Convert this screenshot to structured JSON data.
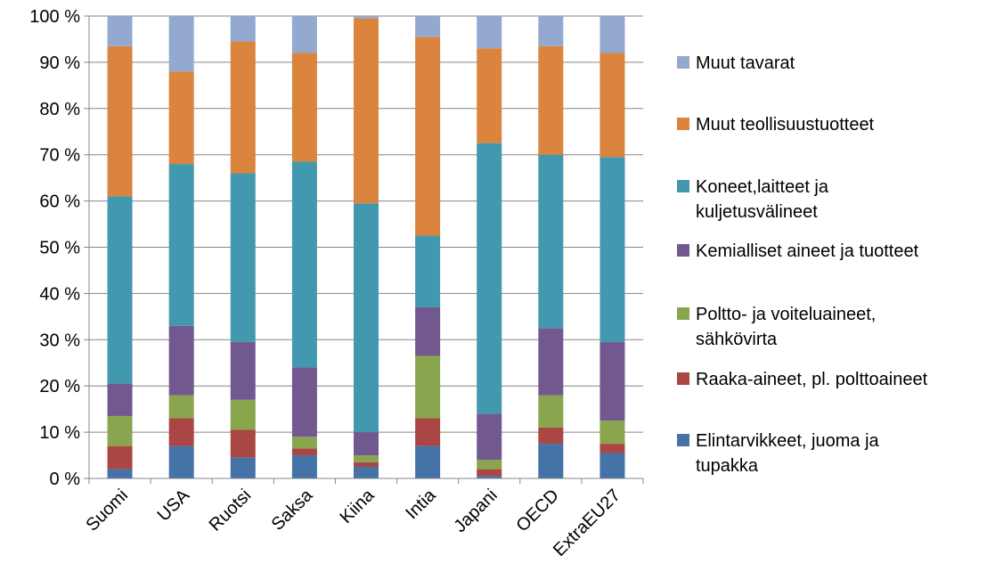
{
  "chart_data": {
    "type": "bar",
    "stacked": true,
    "percent_stacked": true,
    "categories": [
      "Suomi",
      "USA",
      "Ruotsi",
      "Saksa",
      "Kiina",
      "Intia",
      "Japani",
      "OECD",
      "ExtraEU27"
    ],
    "y_ticks": [
      "0 %",
      "10 %",
      "20 %",
      "30 %",
      "40 %",
      "50 %",
      "60 %",
      "70 %",
      "80 %",
      "90 %",
      "100 %"
    ],
    "ylim": [
      0,
      100
    ],
    "grid": true,
    "legend_position": "right",
    "series": [
      {
        "name": "Elintarvikkeet, juoma ja tupakka",
        "color": "#4572A7",
        "values": [
          2,
          7,
          4.5,
          5,
          2.5,
          7,
          0.5,
          7.5,
          5.5
        ]
      },
      {
        "name": "Raaka-aineet, pl. polttoaineet",
        "color": "#AA4643",
        "values": [
          5,
          6,
          6,
          1.5,
          1,
          6,
          1.5,
          3.5,
          2
        ]
      },
      {
        "name": "Poltto- ja voiteluaineet, sähkövirta",
        "color": "#89A54E",
        "values": [
          6.5,
          5,
          6.5,
          2.5,
          1.5,
          13.5,
          2,
          7,
          5
        ]
      },
      {
        "name": "Kemialliset aineet ja tuotteet",
        "color": "#71588F",
        "values": [
          7,
          15,
          12.5,
          15,
          5,
          10.5,
          10,
          14.5,
          17
        ]
      },
      {
        "name": "Koneet,laitteet ja kuljetusvälineet",
        "color": "#4198AF",
        "values": [
          40.5,
          35,
          36.5,
          44.5,
          49.5,
          15.5,
          58.5,
          37.5,
          40
        ]
      },
      {
        "name": "Muut teollisuustuotteet",
        "color": "#DB843D",
        "values": [
          32.5,
          20,
          28.5,
          23.5,
          40,
          43,
          20.5,
          23.5,
          22.5
        ]
      },
      {
        "name": "Muut tavarat",
        "color": "#93A9CF",
        "values": [
          6.5,
          12,
          5.5,
          8,
          0.5,
          4.5,
          7,
          6.5,
          8
        ]
      }
    ]
  },
  "legend": [
    {
      "lines": "Muut tavarat",
      "color": "#93A9CF"
    },
    {
      "lines": "Muut teollisuustuotteet",
      "color": "#DB843D"
    },
    {
      "lines": "Koneet,laitteet ja kuljetusvälineet",
      "color": "#4198AF"
    },
    {
      "lines": "Kemialliset aineet ja tuotteet",
      "color": "#71588F"
    },
    {
      "lines": "Poltto- ja voiteluaineet, sähkövirta",
      "color": "#89A54E"
    },
    {
      "lines": "Raaka-aineet, pl. polttoaineet",
      "color": "#AA4643"
    },
    {
      "lines": "Elintarvikkeet, juoma ja tupakka",
      "color": "#4572A7"
    }
  ]
}
